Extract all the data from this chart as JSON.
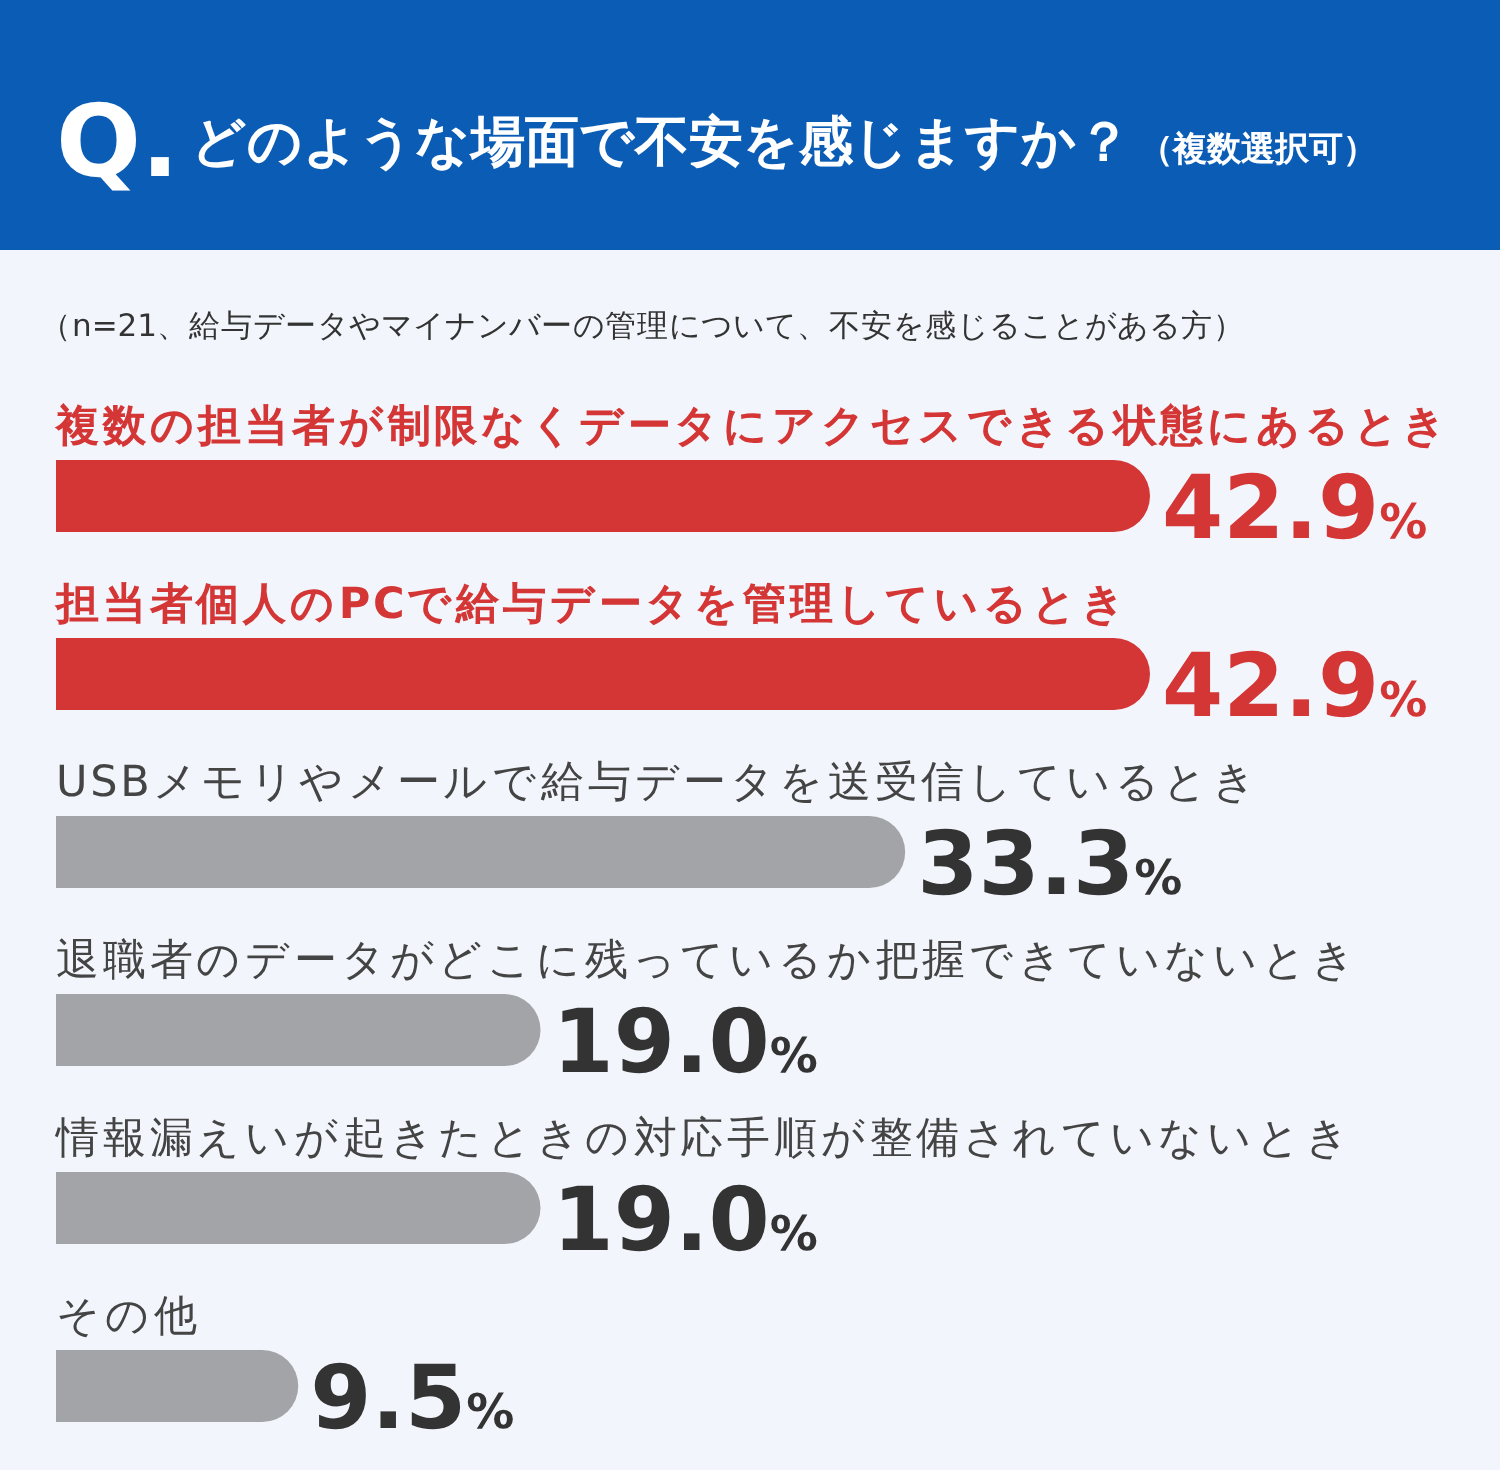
{
  "chart_data": {
    "type": "bar",
    "orientation": "horizontal",
    "title": "Q.どのような場面で不安を感じますか？",
    "subtitle": "（複数選択可）",
    "annotations": [
      "（n=21、給与データやマイナンバーの管理について、不安を感じることがある方）"
    ],
    "categories": [
      "複数の担当者が制限なくデータにアクセスできる状態にあるとき",
      "担当者個人のPCで給与データを管理しているとき",
      "USBメモリやメールで給与データを送受信しているとき",
      "退職者のデータがどこに残っているか把握できていないとき",
      "情報漏えいが起きたときの対応手順が整備されていないとき",
      "その他"
    ],
    "values": [
      42.9,
      42.9,
      33.3,
      19.0,
      19.0,
      9.5
    ],
    "value_labels": [
      "42.9%",
      "42.9%",
      "33.3%",
      "19.0%",
      "19.0%",
      "9.5%"
    ],
    "colors": [
      "#d43535",
      "#d43535",
      "#a3a4a8",
      "#a3a4a8",
      "#a3a4a8",
      "#a3a4a8"
    ]
  }
}
